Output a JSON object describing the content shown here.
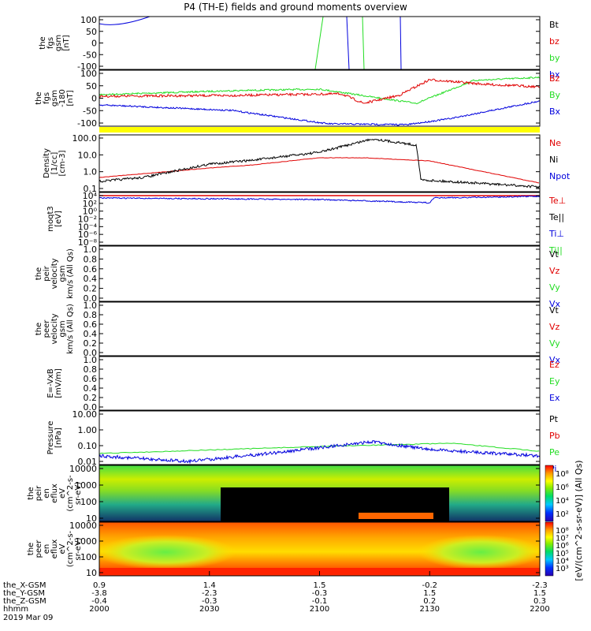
{
  "title": "P4 (TH-E) fields and ground moments overview",
  "colors": {
    "black": "#000000",
    "red": "#e00000",
    "green": "#22dd22",
    "blue": "#0000dd",
    "yellow": "#ffff00"
  },
  "chart_data": {
    "type": "line",
    "time_axis": {
      "ticks": [
        "2000",
        "2030",
        "2100",
        "2130",
        "2200"
      ],
      "range_hhmm": [
        "2000",
        "2200"
      ],
      "footer": {
        "rows": [
          {
            "label": "the_X-GSM",
            "values": [
              "0.9",
              "1.4",
              "1.5",
              "-0.2",
              "-2.3"
            ]
          },
          {
            "label": "the_Y-GSM",
            "values": [
              "-3.8",
              "-2.3",
              "-0.3",
              "1.5",
              "1.5"
            ]
          },
          {
            "label": "the_Z-GSM",
            "values": [
              "-0.4",
              "-0.3",
              "-0.1",
              "0.2",
              "0.3"
            ]
          },
          {
            "label": "hhmm",
            "values": [
              "2000",
              "2030",
              "2100",
              "2130",
              "2200"
            ]
          }
        ],
        "date": "2019 Mar 09"
      }
    },
    "panels": [
      {
        "id": "fgs",
        "ylabel": [
          "the",
          "fgs",
          "gsm",
          "[nT]"
        ],
        "ylim": [
          -100,
          100
        ],
        "ticks": [
          "100",
          "50",
          "0",
          "-50",
          "-100"
        ],
        "legend": [
          {
            "text": "Bt",
            "color": "black"
          },
          {
            "text": "bz",
            "color": "red"
          },
          {
            "text": "by",
            "color": "green"
          },
          {
            "text": "bx",
            "color": "blue"
          }
        ]
      },
      {
        "id": "fgs_dlbias",
        "ylabel": [
          "the",
          "fgs",
          "gsm",
          "-180",
          "[nT]"
        ],
        "ylim": [
          -120,
          100
        ],
        "ticks": [
          "100",
          "50",
          "0",
          "-50",
          "-100"
        ],
        "legend": [
          {
            "text": "Bz",
            "color": "red"
          },
          {
            "text": "By",
            "color": "green"
          },
          {
            "text": "Bx",
            "color": "blue"
          }
        ]
      },
      {
        "id": "density",
        "ylabel": [
          "Density",
          "[1/cc]",
          "[cm-3]"
        ],
        "ylim": [
          0.05,
          200
        ],
        "log": true,
        "ticks": [
          "100.0",
          "10.0",
          "1.0",
          "0.1"
        ],
        "legend": [
          {
            "text": "Ne",
            "color": "red"
          },
          {
            "text": "Ni",
            "color": "black"
          },
          {
            "text": "Npot",
            "color": "blue"
          }
        ]
      },
      {
        "id": "temperature",
        "ylabel": [
          "moqt3",
          "[eV]"
        ],
        "log": true,
        "ticks": [
          "10⁴",
          "10²",
          "10⁰",
          "10⁻²",
          "10⁻⁴",
          "10⁻⁶",
          "10⁻⁸"
        ],
        "legend": [
          {
            "text": "Te⊥",
            "color": "red"
          },
          {
            "text": "Te||",
            "color": "black"
          },
          {
            "text": "Ti⊥",
            "color": "blue"
          },
          {
            "text": "Ti||",
            "color": "green"
          }
        ]
      },
      {
        "id": "peir_velocity",
        "ylabel": [
          "the",
          "peir",
          "velocity",
          "gsm",
          "km/s (All Qs)"
        ],
        "ylim": [
          0,
          1
        ],
        "ticks": [
          "1.0",
          "0.8",
          "0.6",
          "0.4",
          "0.2",
          "0.0"
        ],
        "legend": [
          {
            "text": "Vt",
            "color": "black"
          },
          {
            "text": "Vz",
            "color": "red"
          },
          {
            "text": "Vy",
            "color": "green"
          },
          {
            "text": "Vx",
            "color": "blue"
          }
        ]
      },
      {
        "id": "peer_velocity",
        "ylabel": [
          "the",
          "peer",
          "velocity",
          "gsm",
          "km/s (All Qs)"
        ],
        "ylim": [
          0,
          1
        ],
        "ticks": [
          "1.0",
          "0.8",
          "0.6",
          "0.4",
          "0.2",
          "0.0"
        ],
        "legend": [
          {
            "text": "Vt",
            "color": "black"
          },
          {
            "text": "Vz",
            "color": "red"
          },
          {
            "text": "Vy",
            "color": "green"
          },
          {
            "text": "Vx",
            "color": "blue"
          }
        ]
      },
      {
        "id": "efield",
        "ylabel": [
          "E=-VxB",
          "[mV/m]"
        ],
        "ylim": [
          0,
          1
        ],
        "ticks": [
          "1.0",
          "0.8",
          "0.6",
          "0.4",
          "0.2",
          "0.0"
        ],
        "legend": [
          {
            "text": "Ez",
            "color": "red"
          },
          {
            "text": "Ey",
            "color": "green"
          },
          {
            "text": "Ex",
            "color": "blue"
          }
        ]
      },
      {
        "id": "pressure",
        "ylabel": [
          "Pressure",
          "[nPa]"
        ],
        "ylim": [
          0.005,
          20
        ],
        "log": true,
        "ticks": [
          "10.00",
          "1.00",
          "0.10",
          "0.01"
        ],
        "legend": [
          {
            "text": "Pt",
            "color": "black"
          },
          {
            "text": "Pb",
            "color": "red"
          },
          {
            "text": "Pe",
            "color": "green"
          },
          {
            "text": "Pi",
            "color": "blue"
          }
        ]
      },
      {
        "id": "peir_eflux",
        "type": "heatmap",
        "ylabel": [
          "the",
          "peir",
          "en",
          "eflux",
          "eV",
          "(cm^2-s-",
          "sr-eV)"
        ],
        "ticks": [
          "10000",
          "1000",
          "100",
          "10"
        ],
        "colorbar_ticks": [
          "10⁸",
          "10⁶",
          "10⁴",
          "10²"
        ],
        "colorbar_label": "[eV/(cm^2-s-sr-eV)] (All Qs)"
      },
      {
        "id": "peer_eflux",
        "type": "heatmap",
        "ylabel": [
          "the",
          "peer",
          "en",
          "eflux",
          "eV",
          "(cm^2-s-",
          "sr-eV)"
        ],
        "ticks": [
          "10000",
          "1000",
          "100",
          "10"
        ],
        "colorbar_ticks": [
          "10⁸",
          "10⁷",
          "10⁶",
          "10⁵",
          "10⁴",
          "10³"
        ],
        "colorbar_label": "[eV/(cm^2-s-sr-eV)] (All Qs)"
      }
    ]
  }
}
